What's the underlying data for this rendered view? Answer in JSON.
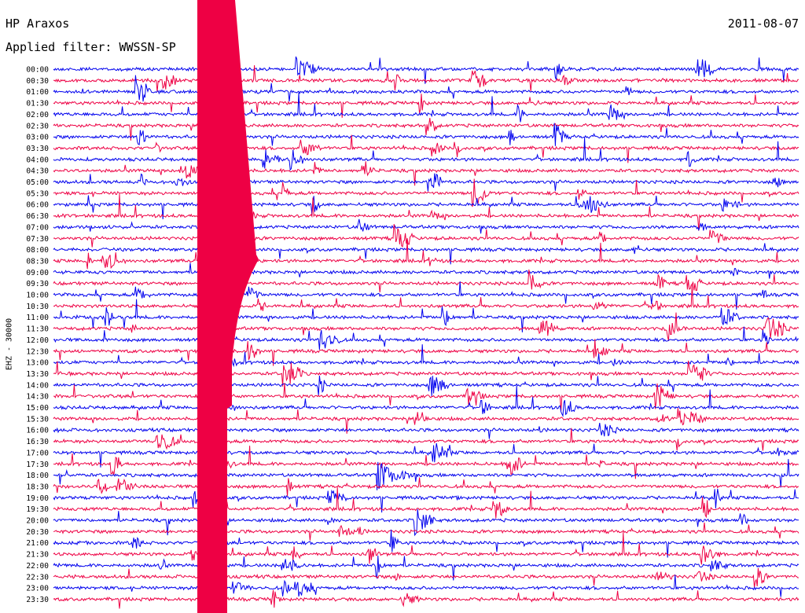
{
  "header": {
    "station": "HP Araxos",
    "date": "2011-08-07",
    "filter_label": "Applied filter: WWSSN-SP"
  },
  "chart_data": {
    "type": "line",
    "title": "HP Araxos",
    "date": "2011-08-07",
    "filter": "WWSSN-SP",
    "ylabel": "EHZ - 30000",
    "row_labels": [
      "00:00",
      "00:30",
      "01:00",
      "01:30",
      "02:00",
      "02:30",
      "03:00",
      "03:30",
      "04:00",
      "04:30",
      "05:00",
      "05:30",
      "06:00",
      "06:30",
      "07:00",
      "07:30",
      "08:00",
      "08:30",
      "09:00",
      "09:30",
      "10:00",
      "10:30",
      "11:00",
      "11:30",
      "12:00",
      "12:30",
      "13:00",
      "13:30",
      "14:00",
      "14:30",
      "15:00",
      "15:30",
      "16:00",
      "16:30",
      "17:00",
      "17:30",
      "18:00",
      "18:30",
      "19:00",
      "19:30",
      "20:00",
      "20:30",
      "21:00",
      "21:30",
      "22:00",
      "22:30",
      "23:00",
      "23:30"
    ],
    "colors": {
      "odd_rows": "#0000ee",
      "even_rows": "#ee0044"
    },
    "grid": false
  }
}
